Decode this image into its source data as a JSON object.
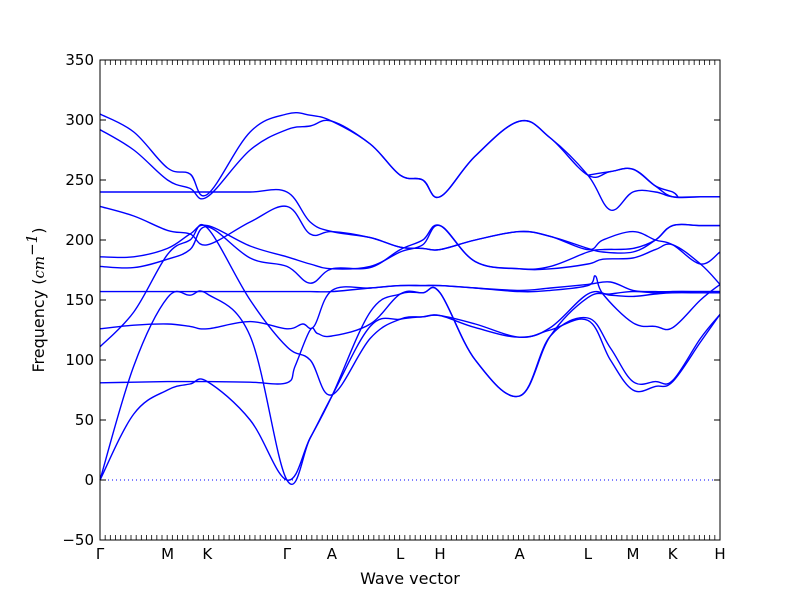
{
  "chart_data": {
    "type": "line",
    "xlabel": "Wave vector",
    "ylabel_main": "Frequency (",
    "ylabel_unit": "cm",
    "ylabel_exp": "−1",
    "ylabel_close": ")",
    "ylim": [
      -50,
      350
    ],
    "yticks": [
      -50,
      0,
      50,
      100,
      150,
      200,
      250,
      300,
      350
    ],
    "ytick_labels": [
      "−50",
      "0",
      "50",
      "100",
      "150",
      "200",
      "250",
      "300",
      "350"
    ],
    "xlim": [
      0,
      8.26
    ],
    "high_symmetry_points": [
      {
        "label": "Γ",
        "x": 0
      },
      {
        "label": "M",
        "x": 0.9
      },
      {
        "label": "K",
        "x": 1.43
      },
      {
        "label": "Γ",
        "x": 2.49
      },
      {
        "label": "A",
        "x": 3.09
      },
      {
        "label": "L",
        "x": 4.0
      },
      {
        "label": "H",
        "x": 4.53
      },
      {
        "label": "A",
        "x": 5.59
      },
      {
        "label": "L",
        "x": 6.5
      },
      {
        "label": "M",
        "x": 7.1
      },
      {
        "label": "K",
        "x": 7.63
      },
      {
        "label": "H",
        "x": 8.26
      }
    ],
    "zero_line": true,
    "line_color": "#0000ff",
    "series": [
      {
        "x": [
          0,
          0.45,
          0.9,
          1.2,
          1.43,
          2.0,
          2.49,
          2.8,
          3.09,
          3.6,
          4.0,
          4.3,
          4.53,
          5.0,
          5.59,
          6.0,
          6.5,
          6.8,
          7.1,
          7.4,
          7.63,
          8.0,
          8.26
        ],
        "y": [
          0,
          55,
          75,
          80,
          82,
          50,
          0,
          35,
          70,
          128,
          134,
          136,
          137,
          130,
          119,
          125,
          133,
          100,
          75,
          78,
          82,
          115,
          138
        ]
      },
      {
        "x": [
          0,
          0.45,
          0.9,
          1.2,
          1.43,
          2.0,
          2.49,
          2.8,
          3.09,
          3.6,
          4.0,
          4.3,
          4.53,
          5.0,
          5.59,
          6.0,
          6.5,
          6.8,
          7.1,
          7.4,
          7.63,
          8.0,
          8.26
        ],
        "y": [
          0,
          95,
          152,
          154,
          155,
          120,
          0,
          35,
          70,
          140,
          155,
          156,
          156,
          100,
          70,
          120,
          135,
          110,
          82,
          82,
          83,
          118,
          138
        ]
      },
      {
        "x": [
          0,
          0.45,
          0.9,
          1.2,
          1.43,
          2.0,
          2.49,
          2.6,
          2.8,
          2.9,
          3.09,
          3.6,
          4.0,
          4.3,
          4.53,
          5.0,
          5.59,
          6.0,
          6.5,
          6.8,
          7.1,
          7.4,
          7.63,
          8.0,
          8.26
        ],
        "y": [
          81,
          81.5,
          82,
          82,
          82,
          81.5,
          81,
          95,
          125,
          122,
          120,
          130,
          155,
          156,
          156,
          100,
          70,
          120,
          152,
          155,
          157,
          156,
          157,
          157,
          157
        ]
      },
      {
        "x": [
          0,
          0.45,
          0.9,
          1.2,
          1.43,
          2.0,
          2.49,
          2.8,
          3.09,
          3.6,
          4.0,
          4.3,
          4.53,
          5.0,
          5.59,
          6.0,
          6.5,
          6.8,
          7.1,
          7.4,
          7.63,
          8.0,
          8.26
        ],
        "y": [
          111,
          140,
          188,
          200,
          210,
          150,
          111,
          100,
          71,
          118,
          134,
          136,
          137,
          127,
          119,
          127,
          155,
          154,
          153,
          155,
          156,
          156,
          156
        ]
      },
      {
        "x": [
          0,
          0.45,
          0.9,
          1.2,
          1.43,
          2.0,
          2.49,
          2.7,
          2.85,
          3.09,
          3.6,
          4.0,
          4.3,
          4.53,
          5.0,
          5.59,
          6.0,
          6.5,
          6.8,
          7.1,
          7.4,
          7.63,
          8.0,
          8.26
        ],
        "y": [
          126,
          129,
          130,
          128,
          126,
          132,
          126,
          130,
          128,
          158,
          160,
          162,
          162,
          162,
          160,
          158,
          160,
          163,
          165,
          158,
          157,
          157,
          157,
          157
        ]
      },
      {
        "x": [
          0,
          0.45,
          0.9,
          1.2,
          1.43,
          2.0,
          2.49,
          2.8,
          3.09,
          3.6,
          4.0,
          4.3,
          4.53,
          5.0,
          5.59,
          6.0,
          6.5,
          6.6,
          6.7,
          7.1,
          7.4,
          7.63,
          8.0,
          8.26
        ],
        "y": [
          157,
          157,
          157,
          157,
          157,
          157,
          157,
          157,
          157,
          160,
          162,
          162,
          162,
          160,
          157,
          158,
          162,
          170,
          155,
          131,
          128,
          127,
          150,
          163
        ]
      },
      {
        "x": [
          0,
          0.45,
          0.9,
          1.2,
          1.43,
          2.0,
          2.49,
          2.8,
          3.09,
          3.6,
          4.0,
          4.3,
          4.53,
          5.0,
          5.59,
          6.0,
          6.5,
          6.7,
          7.1,
          7.4,
          7.63,
          8.0,
          8.26
        ],
        "y": [
          178,
          177,
          184,
          192,
          211,
          185,
          178,
          164,
          176,
          177,
          192,
          200,
          212,
          182,
          176,
          176,
          180,
          184,
          185,
          192,
          196,
          180,
          163
        ]
      },
      {
        "x": [
          0,
          0.45,
          0.9,
          1.2,
          1.43,
          2.0,
          2.49,
          2.8,
          3.09,
          3.6,
          4.0,
          4.3,
          4.53,
          5.0,
          5.59,
          6.0,
          6.5,
          6.7,
          7.1,
          7.4,
          7.63,
          8.0,
          8.26
        ],
        "y": [
          186,
          186,
          193,
          205,
          212,
          195,
          186,
          180,
          176,
          178,
          190,
          196,
          212,
          182,
          176,
          178,
          190,
          192,
          193,
          200,
          212,
          212,
          212
        ]
      },
      {
        "x": [
          0,
          0.45,
          0.9,
          1.2,
          1.43,
          2.0,
          2.49,
          2.8,
          3.09,
          3.6,
          4.0,
          4.3,
          4.53,
          5.0,
          5.59,
          6.0,
          6.5,
          6.7,
          7.1,
          7.4,
          7.63,
          8.0,
          8.26
        ],
        "y": [
          228,
          220,
          208,
          205,
          196,
          215,
          228,
          205,
          207,
          202,
          194,
          193,
          192,
          200,
          207,
          203,
          193,
          190,
          190,
          200,
          212,
          212,
          212
        ]
      },
      {
        "x": [
          0,
          0.45,
          0.9,
          1.2,
          1.43,
          2.0,
          2.49,
          2.8,
          3.09,
          3.6,
          4.0,
          4.3,
          4.53,
          5.0,
          5.59,
          6.0,
          6.5,
          6.7,
          7.1,
          7.4,
          7.63,
          8.0,
          8.26
        ],
        "y": [
          240,
          240,
          240,
          240,
          240,
          240,
          240,
          215,
          207,
          202,
          194,
          193,
          192,
          200,
          207,
          203,
          192,
          200,
          207,
          200,
          196,
          180,
          190
        ]
      },
      {
        "x": [
          0,
          0.45,
          0.9,
          1.2,
          1.43,
          2.0,
          2.49,
          2.8,
          3.09,
          3.6,
          4.0,
          4.3,
          4.53,
          5.0,
          5.59,
          6.0,
          6.5,
          6.8,
          7.1,
          7.4,
          7.63,
          8.0,
          8.26
        ],
        "y": [
          292,
          275,
          250,
          243,
          236,
          275,
          292,
          295,
          299,
          280,
          254,
          250,
          236,
          270,
          299,
          285,
          254,
          225,
          240,
          240,
          236,
          236,
          236
        ]
      },
      {
        "x": [
          0,
          0.45,
          0.9,
          1.2,
          1.43,
          2.0,
          2.49,
          2.8,
          3.09,
          3.6,
          4.0,
          4.3,
          4.53,
          5.0,
          5.59,
          6.0,
          6.5,
          6.8,
          7.1,
          7.4,
          7.63,
          8.0,
          8.26
        ],
        "y": [
          305,
          290,
          260,
          255,
          238,
          290,
          305,
          304,
          299,
          280,
          254,
          250,
          236,
          270,
          299,
          285,
          254,
          257,
          259,
          245,
          236,
          236,
          236
        ]
      },
      {
        "x": [
          6.5,
          6.8,
          7.1,
          7.4,
          7.63,
          7.7
        ],
        "y": [
          254,
          257,
          259,
          245,
          240,
          236
        ]
      }
    ]
  }
}
